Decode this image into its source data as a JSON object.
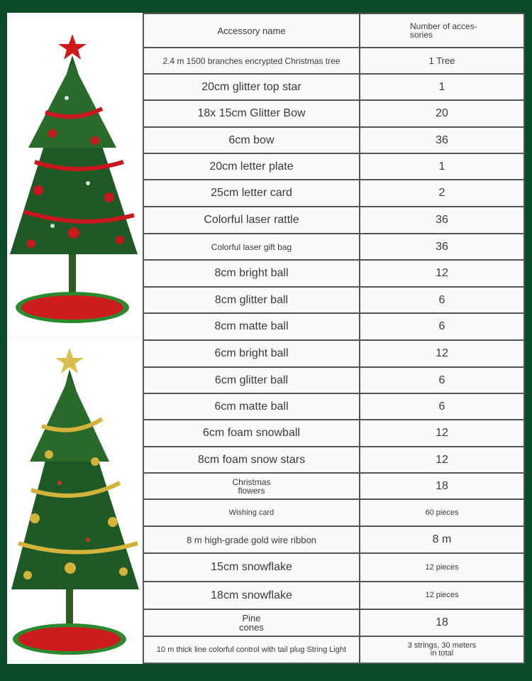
{
  "header": {
    "name": "Accessory name",
    "count": "Number of acces-\nsories"
  },
  "rows": [
    {
      "name": "2.4 m 1500 branches encrypted Christmas tree",
      "count": "1 Tree"
    },
    {
      "name": "20cm glitter top star",
      "count": "1"
    },
    {
      "name": "18x 15cm Glitter Bow",
      "count": "20"
    },
    {
      "name": "6cm bow",
      "count": "36"
    },
    {
      "name": "20cm letter plate",
      "count": "1"
    },
    {
      "name": "25cm letter card",
      "count": "2"
    },
    {
      "name": "Colorful laser rattle",
      "count": "36"
    },
    {
      "name": "Colorful laser gift bag",
      "count": "36"
    },
    {
      "name": "8cm bright ball",
      "count": "12"
    },
    {
      "name": "8cm glitter ball",
      "count": "6"
    },
    {
      "name": "8cm matte ball",
      "count": "6"
    },
    {
      "name": "6cm bright ball",
      "count": "12"
    },
    {
      "name": "6cm glitter ball",
      "count": "6"
    },
    {
      "name": "6cm matte ball",
      "count": "6"
    },
    {
      "name": "6cm foam snowball",
      "count": "12"
    },
    {
      "name": "8cm foam snow stars",
      "count": "12"
    },
    {
      "name": "Christmas\nflowers",
      "count": "18"
    },
    {
      "name": "Wishing card",
      "count": "60 pieces"
    },
    {
      "name": "8 m high-grade gold wire ribbon",
      "count": "8 m"
    },
    {
      "name": "15cm snowflake",
      "count": "12 pieces"
    },
    {
      "name": "18cm snowflake",
      "count": "12 pieces"
    },
    {
      "name": "Pine\ncones",
      "count": "18"
    },
    {
      "name": "10 m thick line colorful control with tail plug String Light",
      "count": "3 strings, 30 meters\nin total"
    }
  ],
  "colors": {
    "background": "#0b4a28",
    "red_tree_accent": "#c8171e",
    "gold_tree_accent": "#d4b33a",
    "tree_green": "#1f5a26"
  }
}
